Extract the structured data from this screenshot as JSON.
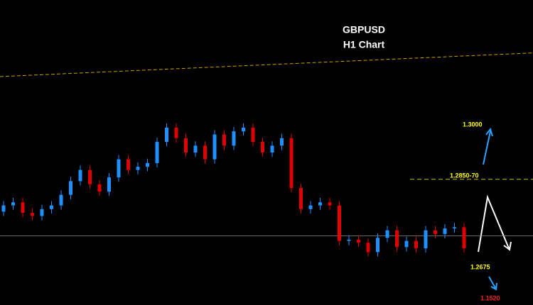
{
  "chart_data": {
    "type": "candlestick",
    "title": "GBPUSD",
    "subtitle": "H1 Chart",
    "ylim": [
      1.265,
      1.314
    ],
    "up_color": "#1e90ff",
    "down_color": "#e00000",
    "open": [
      1.28,
      1.281,
      1.2815,
      1.2798,
      1.2793,
      1.2804,
      1.281,
      1.2827,
      1.2849,
      1.2867,
      1.2844,
      1.2832,
      1.2855,
      1.2884,
      1.2867,
      1.2872,
      1.2878,
      1.2912,
      1.2935,
      1.2918,
      1.2895,
      1.2906,
      1.2884,
      1.2924,
      1.2906,
      1.2929,
      1.2935,
      1.2912,
      1.2895,
      1.2906,
      1.2918,
      1.2838,
      1.2804,
      1.281,
      1.2815,
      1.281,
      1.2753,
      1.2755,
      1.275,
      1.2735,
      1.2758,
      1.277,
      1.2743,
      1.2753,
      1.2741,
      1.277,
      1.2764,
      1.2773,
      1.2775
    ],
    "high": [
      1.2817,
      1.2822,
      1.2822,
      1.2805,
      1.2811,
      1.2817,
      1.2834,
      1.2856,
      1.2874,
      1.2874,
      1.2851,
      1.2862,
      1.2891,
      1.2891,
      1.2879,
      1.2885,
      1.2919,
      1.2942,
      1.2942,
      1.2925,
      1.2913,
      1.2913,
      1.2931,
      1.2931,
      1.2936,
      1.2942,
      1.2942,
      1.2919,
      1.2913,
      1.2925,
      1.2925,
      1.2845,
      1.2817,
      1.2822,
      1.2822,
      1.2817,
      1.2762,
      1.2762,
      1.2757,
      1.2765,
      1.2777,
      1.2777,
      1.276,
      1.276,
      1.2777,
      1.2777,
      1.278,
      1.2782,
      1.2782
    ],
    "low": [
      1.2793,
      1.2803,
      1.2791,
      1.2786,
      1.2786,
      1.2797,
      1.2803,
      1.282,
      1.2842,
      1.2837,
      1.2825,
      1.2825,
      1.2848,
      1.286,
      1.286,
      1.2865,
      1.2871,
      1.2905,
      1.2911,
      1.2888,
      1.2888,
      1.2877,
      1.2877,
      1.2899,
      1.2899,
      1.2922,
      1.2905,
      1.2888,
      1.2888,
      1.2899,
      1.2831,
      1.2797,
      1.2797,
      1.2803,
      1.2803,
      1.2746,
      1.2746,
      1.2743,
      1.2728,
      1.2728,
      1.2751,
      1.2736,
      1.2736,
      1.2734,
      1.2734,
      1.2757,
      1.2757,
      1.2766,
      1.2734
    ],
    "close": [
      1.281,
      1.2815,
      1.2798,
      1.2793,
      1.2804,
      1.281,
      1.2827,
      1.2849,
      1.2867,
      1.2844,
      1.2832,
      1.2855,
      1.2884,
      1.2867,
      1.2872,
      1.2878,
      1.2912,
      1.2935,
      1.2918,
      1.2895,
      1.2906,
      1.2884,
      1.2924,
      1.2906,
      1.2929,
      1.2935,
      1.2912,
      1.2895,
      1.2906,
      1.2918,
      1.2838,
      1.2804,
      1.281,
      1.2815,
      1.281,
      1.2753,
      1.2755,
      1.275,
      1.2735,
      1.2758,
      1.277,
      1.2743,
      1.2753,
      1.2741,
      1.277,
      1.2764,
      1.2773,
      1.2775,
      1.2741
    ],
    "trend_line": {
      "values": [
        1.3017,
        1.3055
      ],
      "color": "#c8a000"
    },
    "current_price_line": {
      "value": 1.2761,
      "color": "#888888"
    },
    "resistance_line": {
      "value": 1.2852,
      "color": "#c8c000"
    },
    "annotations": [
      "1.3000",
      "1.2850-70",
      "1.2675",
      "1.1520"
    ]
  }
}
